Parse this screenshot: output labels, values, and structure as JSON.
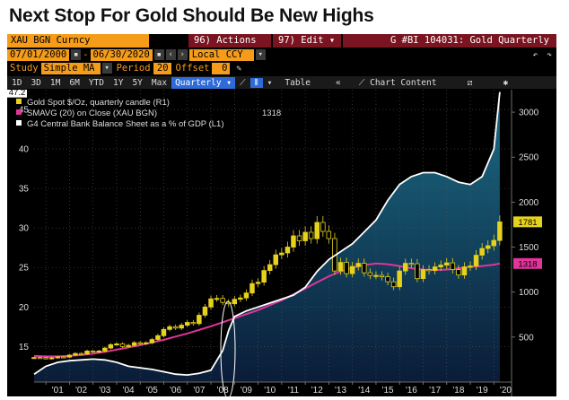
{
  "headline": "Next Stop For Gold Should Be New Highs",
  "toolbar": {
    "security": "XAU BGN Curncy",
    "actions": "96) Actions",
    "edit": "97) Edit",
    "graph_title": "G #BI 104031: Gold Quarterly",
    "date_start": "07/01/2000",
    "date_end": "06/30/2020",
    "currency": "Local CCY",
    "study_label": "Study",
    "study_value": "Simple MA",
    "period_label": "Period",
    "period_value": "20",
    "offset_label": "Offset",
    "offset_value": "0",
    "ranges": [
      "1D",
      "3D",
      "1M",
      "6M",
      "YTD",
      "1Y",
      "5Y",
      "Max"
    ],
    "freq": "Quarterly",
    "table": "Table",
    "chart_content": "Chart Content"
  },
  "legend": {
    "gold": "Gold Spot $/Oz, quarterly candle (R1)",
    "smavg": "SMAVG (20)  on Close (XAU BGN)",
    "smavg_value": "1318",
    "cb": "G4 Central Bank Balance Sheet as a % of GDP (L1)"
  },
  "colors": {
    "candle": "#e6d21c",
    "sma": "#e0359a",
    "cb_line": "#ffffff",
    "cb_fill_top": "#1b6d86",
    "cb_fill_bottom": "#0a1c38",
    "flag_gold": "#e6d21c",
    "flag_sma": "#e0359a",
    "flag_cb": "#ffffff"
  },
  "chart_data": {
    "type": "line",
    "x_ticks": [
      "'01",
      "'02",
      "'03",
      "'04",
      "'05",
      "'06",
      "'07",
      "'08",
      "'09",
      "'10",
      "'11",
      "'12",
      "'13",
      "'14",
      "'15",
      "'16",
      "'17",
      "'18",
      "'19",
      "'20"
    ],
    "left_axis": {
      "ticks": [
        15,
        20,
        25,
        30,
        35,
        40,
        45
      ],
      "range": [
        10.5,
        47.5
      ],
      "last_value_flag": "47.2"
    },
    "right_axis": {
      "ticks": [
        500,
        1000,
        1500,
        2000,
        2500,
        3000
      ],
      "range": [
        0,
        3250
      ],
      "flags": [
        "1781",
        "1318"
      ]
    },
    "series": [
      {
        "name": "G4 Central Bank Balance Sheet as a % of GDP (L1)",
        "axis": "left",
        "x": [
          2000.5,
          2001,
          2001.5,
          2002,
          2002.5,
          2003,
          2003.5,
          2004,
          2004.5,
          2005,
          2005.5,
          2006,
          2006.5,
          2007,
          2007.5,
          2008,
          2008.5,
          2008.75,
          2009,
          2009.5,
          2010,
          2010.5,
          2011,
          2011.5,
          2012,
          2012.5,
          2013,
          2013.5,
          2014,
          2014.5,
          2015,
          2015.5,
          2016,
          2016.5,
          2017,
          2017.5,
          2018,
          2018.5,
          2019,
          2019.5,
          2020,
          2020.25
        ],
        "values": [
          11.5,
          12.5,
          13.0,
          13.2,
          13.3,
          13.4,
          13.3,
          13.0,
          12.5,
          12.3,
          12.1,
          11.8,
          11.5,
          11.4,
          11.6,
          12.0,
          14.5,
          17.0,
          18.8,
          19.5,
          20.0,
          20.5,
          21.0,
          21.5,
          22.5,
          24.5,
          26.0,
          27.0,
          28.0,
          29.5,
          31.0,
          33.5,
          35.5,
          36.5,
          37.0,
          37.0,
          36.5,
          35.8,
          35.5,
          36.5,
          40.0,
          47.2
        ]
      },
      {
        "name": "SMAVG (20)  on Close (XAU BGN)",
        "axis": "right",
        "x": [
          2000.5,
          2001,
          2001.5,
          2002,
          2002.5,
          2003,
          2003.5,
          2004,
          2004.5,
          2005,
          2005.5,
          2006,
          2006.5,
          2007,
          2007.5,
          2008,
          2008.5,
          2009,
          2009.5,
          2010,
          2010.5,
          2011,
          2011.5,
          2012,
          2012.5,
          2013,
          2013.5,
          2014,
          2014.5,
          2015,
          2015.5,
          2016,
          2016.5,
          2017,
          2017.5,
          2018,
          2018.5,
          2019,
          2019.5,
          2020,
          2020.25
        ],
        "values": [
          290,
          285,
          285,
          290,
          300,
          315,
          335,
          360,
          385,
          410,
          440,
          470,
          505,
          540,
          580,
          620,
          665,
          710,
          755,
          800,
          855,
          910,
          975,
          1040,
          1110,
          1175,
          1230,
          1270,
          1300,
          1318,
          1310,
          1290,
          1265,
          1250,
          1245,
          1250,
          1265,
          1278,
          1290,
          1305,
          1318
        ]
      },
      {
        "name": "Gold Spot $/Oz, quarterly candle (R1)",
        "axis": "right",
        "type": "candle",
        "x": [
          2000.5,
          2000.75,
          2001,
          2001.25,
          2001.5,
          2001.75,
          2002,
          2002.25,
          2002.5,
          2002.75,
          2003,
          2003.25,
          2003.5,
          2003.75,
          2004,
          2004.25,
          2004.5,
          2004.75,
          2005,
          2005.25,
          2005.5,
          2005.75,
          2006,
          2006.25,
          2006.5,
          2006.75,
          2007,
          2007.25,
          2007.5,
          2007.75,
          2008,
          2008.25,
          2008.5,
          2008.75,
          2009,
          2009.25,
          2009.5,
          2009.75,
          2010,
          2010.25,
          2010.5,
          2010.75,
          2011,
          2011.25,
          2011.5,
          2011.75,
          2012,
          2012.25,
          2012.5,
          2012.75,
          2013,
          2013.25,
          2013.5,
          2013.75,
          2014,
          2014.25,
          2014.5,
          2014.75,
          2015,
          2015.25,
          2015.5,
          2015.75,
          2016,
          2016.25,
          2016.5,
          2016.75,
          2017,
          2017.25,
          2017.5,
          2017.75,
          2018,
          2018.25,
          2018.5,
          2018.75,
          2019,
          2019.25,
          2019.5,
          2019.75,
          2020,
          2020.25
        ],
        "values": [
          273,
          272,
          258,
          270,
          280,
          277,
          300,
          318,
          312,
          345,
          335,
          345,
          378,
          416,
          425,
          395,
          408,
          438,
          428,
          437,
          473,
          515,
          585,
          615,
          600,
          632,
          663,
          650,
          743,
          834,
          925,
          930,
          885,
          870,
          920,
          935,
          990,
          1095,
          1110,
          1240,
          1305,
          1415,
          1435,
          1500,
          1625,
          1570,
          1665,
          1595,
          1775,
          1675,
          1595,
          1235,
          1330,
          1205,
          1285,
          1320,
          1215,
          1185,
          1185,
          1170,
          1115,
          1060,
          1235,
          1320,
          1315,
          1150,
          1250,
          1240,
          1280,
          1300,
          1325,
          1250,
          1190,
          1280,
          1290,
          1410,
          1485,
          1515,
          1575,
          1781
        ]
      }
    ]
  }
}
